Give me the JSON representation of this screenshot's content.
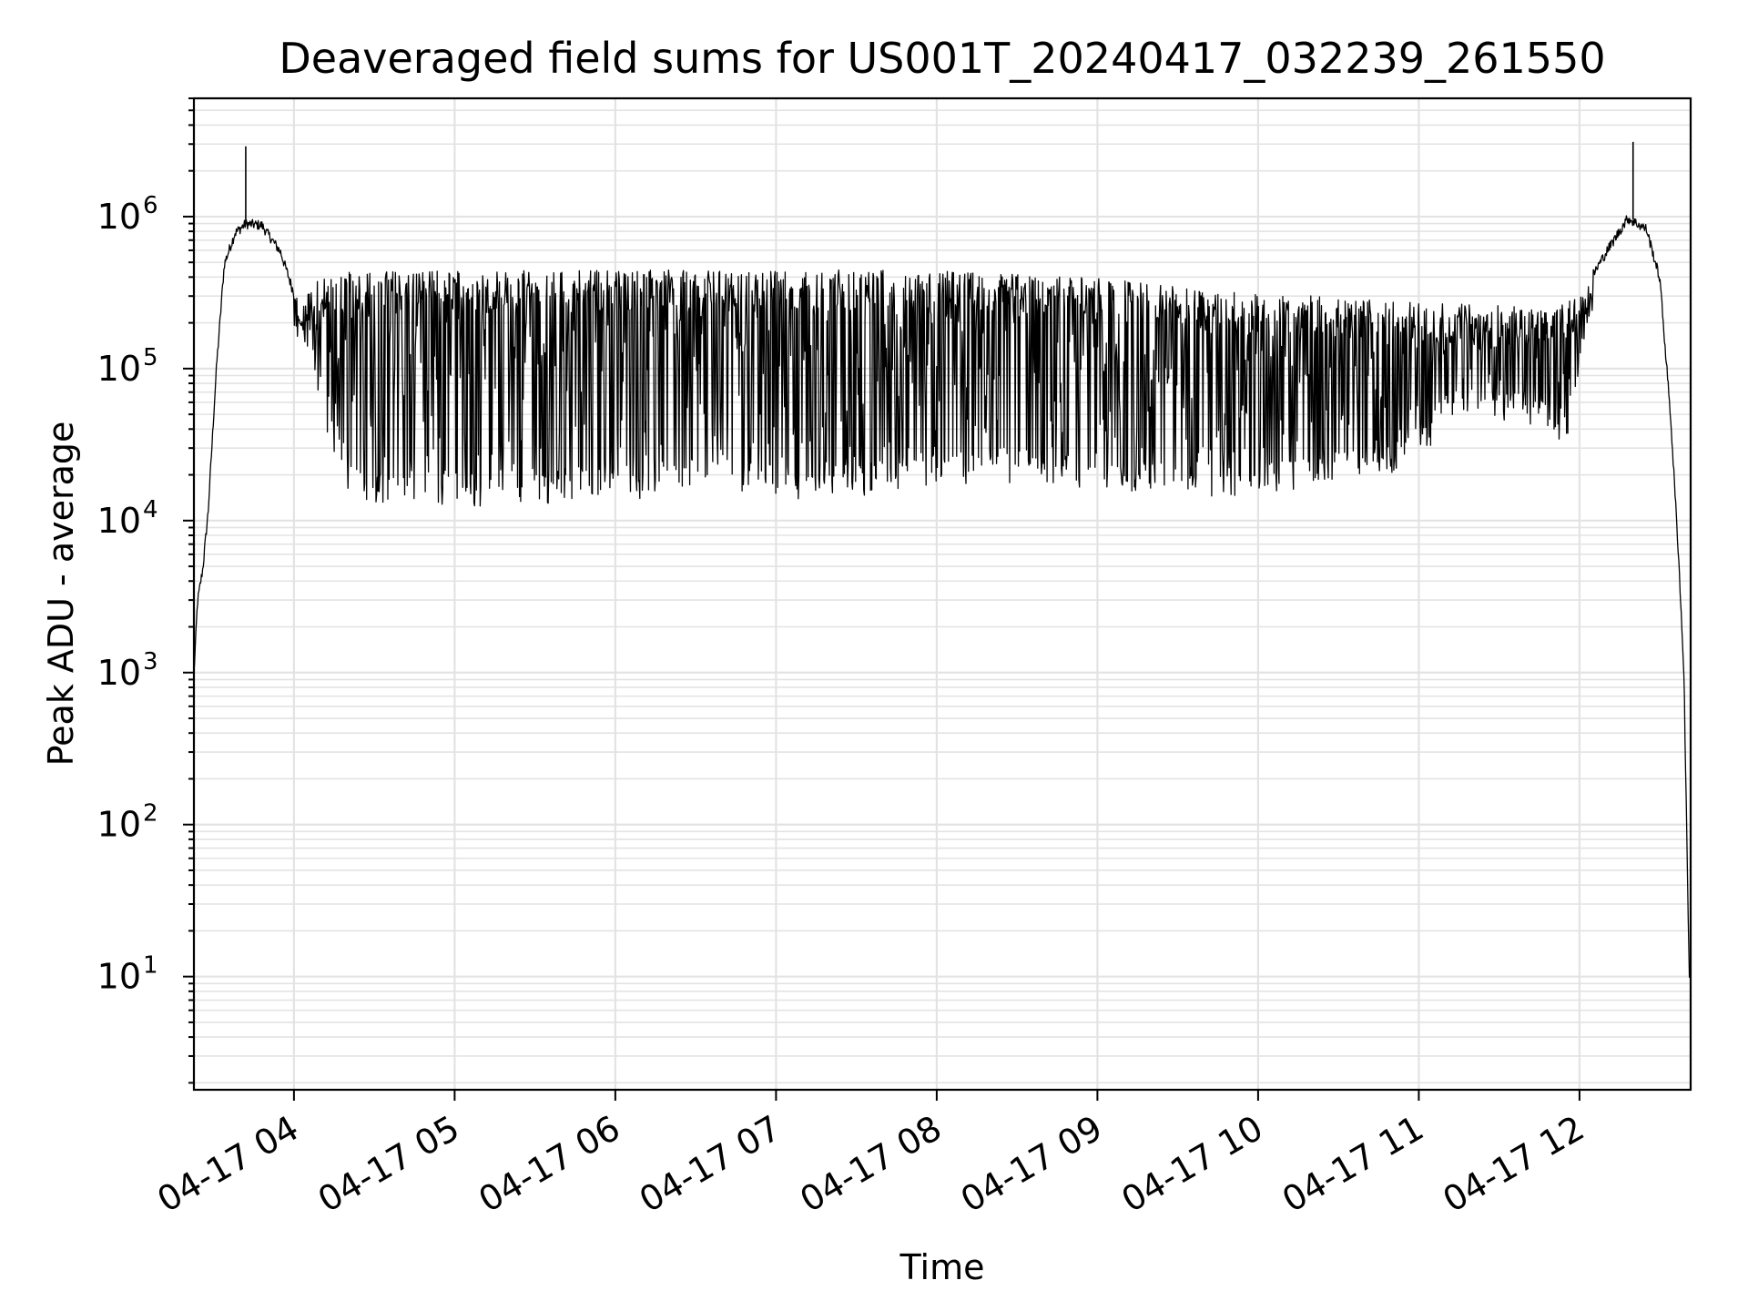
{
  "chart_data": {
    "type": "line",
    "title": "Deaveraged field sums for US001T_20240417_032239_261550",
    "xlabel": "Time",
    "ylabel": "Peak ADU - average",
    "yscale": "log",
    "ylim": [
      1.8,
      6000000
    ],
    "xlim": [
      "2024-04-17 03:22:39",
      "2024-04-17 12:41:30"
    ],
    "grid": "on (major and minor)",
    "line_color": "#000000",
    "x_ticks": [
      "2024-04-17 04:00",
      "2024-04-17 05:00",
      "2024-04-17 06:00",
      "2024-04-17 07:00",
      "2024-04-17 08:00",
      "2024-04-17 09:00",
      "2024-04-17 10:00",
      "2024-04-17 11:00",
      "2024-04-17 12:00"
    ],
    "x_tick_labels": [
      "04-17 04",
      "04-17 05",
      "04-17 06",
      "04-17 07",
      "04-17 08",
      "04-17 09",
      "04-17 10",
      "04-17 11",
      "04-17 12"
    ],
    "y_ticks": [
      10,
      100,
      1000,
      10000,
      100000,
      1000000
    ],
    "y_tick_labels": [
      {
        "base": "10",
        "exp": "1"
      },
      {
        "base": "10",
        "exp": "2"
      },
      {
        "base": "10",
        "exp": "3"
      },
      {
        "base": "10",
        "exp": "4"
      },
      {
        "base": "10",
        "exp": "5"
      },
      {
        "base": "10",
        "exp": "6"
      }
    ],
    "series": [
      {
        "note_points": "upper envelope and lower envelope of the dense signal, plus spikes",
        "upper": {
          "x": [
            "2024-04-17 03:22:39",
            "2024-04-17 03:24:00",
            "2024-04-17 03:26:00",
            "2024-04-17 03:28:00",
            "2024-04-17 03:31:00",
            "2024-04-17 03:34:00",
            "2024-04-17 03:38:00",
            "2024-04-17 03:42:00",
            "2024-04-17 03:48:00",
            "2024-04-17 03:55:00",
            "2024-04-17 04:02:00",
            "2024-04-17 04:10:00",
            "2024-04-17 04:30:00",
            "2024-04-17 05:00:00",
            "2024-04-17 05:30:00",
            "2024-04-17 06:00:00",
            "2024-04-17 06:30:00",
            "2024-04-17 07:00:00",
            "2024-04-17 07:30:00",
            "2024-04-17 08:00:00",
            "2024-04-17 08:30:00",
            "2024-04-17 09:00:00",
            "2024-04-17 09:30:00",
            "2024-04-17 10:00:00",
            "2024-04-17 10:30:00",
            "2024-04-17 11:00:00",
            "2024-04-17 11:30:00",
            "2024-04-17 11:50:00",
            "2024-04-17 12:00:00",
            "2024-04-17 12:10:00",
            "2024-04-17 12:18:00",
            "2024-04-17 12:25:00",
            "2024-04-17 12:30:00",
            "2024-04-17 12:34:00",
            "2024-04-17 12:37:00",
            "2024-04-17 12:39:00",
            "2024-04-17 12:41:00"
          ],
          "y": [
            1000,
            3000,
            5000,
            12000,
            100000,
            500000,
            800000,
            920000,
            900000,
            600000,
            250000,
            400000,
            420000,
            420000,
            420000,
            430000,
            420000,
            420000,
            430000,
            420000,
            400000,
            380000,
            330000,
            300000,
            280000,
            260000,
            250000,
            230000,
            300000,
            600000,
            1000000,
            850000,
            400000,
            50000,
            6000,
            1000,
            10
          ]
        },
        "lower": {
          "x": [
            "2024-04-17 04:00:00",
            "2024-04-17 04:10:00",
            "2024-04-17 04:20:00",
            "2024-04-17 04:30:00",
            "2024-04-17 05:00:00",
            "2024-04-17 05:30:00",
            "2024-04-17 06:00:00",
            "2024-04-17 06:30:00",
            "2024-04-17 07:00:00",
            "2024-04-17 07:30:00",
            "2024-04-17 08:00:00",
            "2024-04-17 08:30:00",
            "2024-04-17 09:00:00",
            "2024-04-17 09:30:00",
            "2024-04-17 10:00:00",
            "2024-04-17 10:30:00",
            "2024-04-17 10:55:00",
            "2024-04-17 11:10:00",
            "2024-04-17 11:30:00",
            "2024-04-17 11:45:00",
            "2024-04-17 11:55:00",
            "2024-04-17 12:05:00"
          ],
          "y": [
            250000,
            60000,
            20000,
            15000,
            15000,
            16000,
            17000,
            18000,
            17000,
            18000,
            20000,
            22000,
            20000,
            17000,
            17000,
            20000,
            25000,
            50000,
            55000,
            50000,
            40000,
            300000
          ]
        },
        "spikes": [
          {
            "x": "2024-04-17 03:42:00",
            "y": 2900000
          },
          {
            "x": "2024-04-17 12:20:00",
            "y": 3100000
          }
        ]
      }
    ]
  }
}
